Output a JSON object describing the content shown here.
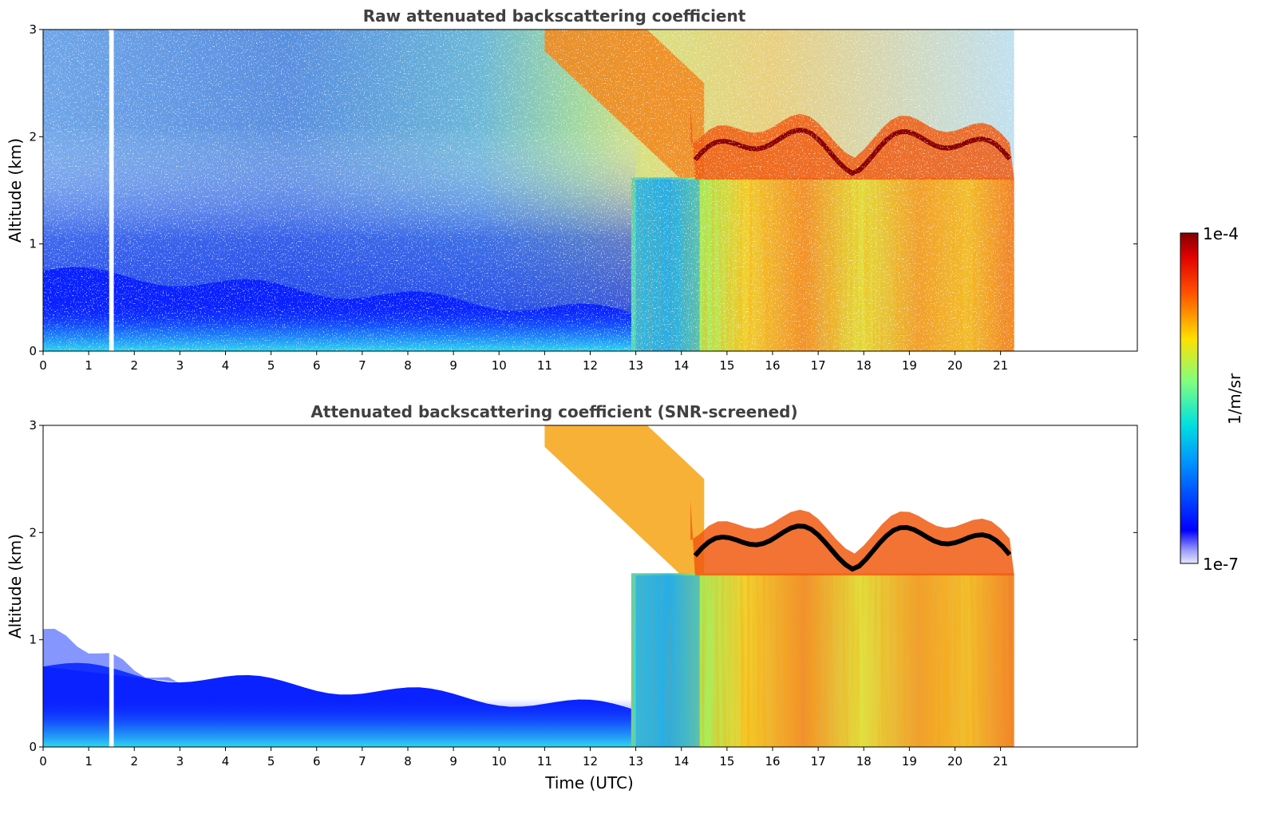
{
  "chart_data": [
    {
      "type": "heatmap",
      "title": "Raw attenuated backscattering coefficient",
      "xlabel": "",
      "ylabel": "Altitude (km)",
      "xlim": [
        0,
        24
      ],
      "ylim": [
        0,
        3
      ],
      "x_ticks": [
        "0",
        "1",
        "2",
        "3",
        "4",
        "5",
        "6",
        "7",
        "8",
        "9",
        "10",
        "11",
        "12",
        "13",
        "14",
        "15",
        "16",
        "17",
        "18",
        "19",
        "20",
        "21"
      ],
      "y_ticks": [
        "0",
        "1",
        "2",
        "3"
      ],
      "data_end_time": 21.3,
      "missing_data_interval": [
        1.45,
        1.55
      ],
      "features": [
        {
          "time_range": [
            0,
            13
          ],
          "description": "boundary layer",
          "top_km_start": 0.75,
          "top_km_end": 0.35
        },
        {
          "time_range": [
            11,
            14.5
          ],
          "description": "descending cloud base",
          "altitude_km_start": 3.0,
          "altitude_km_end": 1.6
        },
        {
          "time_range": [
            14.5,
            21.3
          ],
          "description": "cloud layer",
          "altitude_km_range": [
            1.6,
            2.1
          ]
        }
      ]
    },
    {
      "type": "heatmap",
      "title": "Attenuated backscattering coefficient (SNR-screened)",
      "xlabel": "Time (UTC)",
      "ylabel": "Altitude (km)",
      "xlim": [
        0,
        24
      ],
      "ylim": [
        0,
        3
      ],
      "x_ticks": [
        "0",
        "1",
        "2",
        "3",
        "4",
        "5",
        "6",
        "7",
        "8",
        "9",
        "10",
        "11",
        "12",
        "13",
        "14",
        "15",
        "16",
        "17",
        "18",
        "19",
        "20",
        "21"
      ],
      "y_ticks": [
        "0",
        "1",
        "2",
        "3"
      ],
      "data_end_time": 21.3,
      "missing_data_interval": [
        1.45,
        1.55
      ]
    }
  ],
  "colorbar": {
    "label": "1/m/sr",
    "min_label": "1e-7",
    "max_label": "1e-4",
    "colormap": "jet"
  },
  "colors": {
    "low": "#0000ff",
    "mid": "#80ff80",
    "high": "#ff4000",
    "max": "#800000",
    "saturated": "#000000"
  }
}
